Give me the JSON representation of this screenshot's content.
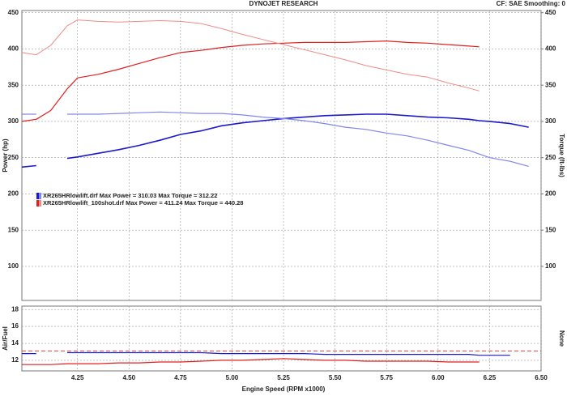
{
  "chart_data": {
    "type": "line",
    "title": "DYNOJET RESEARCH",
    "subtitle": "CF: SAE  Smoothing: 0",
    "x_label": "Engine Speed (RPM x1000)",
    "y_label": "Power (hp)",
    "y2_label": "Torque (ft-lbs)",
    "afr_label": "Air/Fuel",
    "afr_right_label": "None",
    "xlim": [
      3.98,
      6.5
    ],
    "xticks": [
      4.25,
      {
        "value": 4.5,
        "label": "4.50"
      },
      4.75,
      {
        "value": 5,
        "label": "5.00"
      },
      5.25,
      {
        "value": 5.5,
        "label": "5.50"
      },
      5.75,
      {
        "value": 6,
        "label": "6.00"
      },
      6.25,
      {
        "value": 6.5,
        "label": "6.50"
      }
    ],
    "ylim": [
      53,
      453
    ],
    "yticks": [
      100,
      150,
      200,
      250,
      300,
      350,
      400,
      450
    ],
    "y2lim": [
      53,
      453
    ],
    "y2ticks": [
      100,
      150,
      200,
      250,
      300,
      350,
      400,
      450
    ],
    "afr_ylim": [
      10.75,
      18.4
    ],
    "afr_yticks": [
      12,
      14,
      16,
      18
    ],
    "afr_reference": 13.1,
    "grid": true,
    "x": [
      3.98,
      4.05,
      4.12,
      4.2,
      4.25,
      4.35,
      4.45,
      4.55,
      4.65,
      4.75,
      4.85,
      4.95,
      5.05,
      5.15,
      5.25,
      5.35,
      5.45,
      5.55,
      5.65,
      5.75,
      5.85,
      5.95,
      6.05,
      6.15,
      6.2,
      6.25,
      6.35,
      6.44
    ],
    "legend": [
      {
        "label": "XR265HRlowlift.drf Max Power = 310.03 Max Torque = 312.22",
        "colors": [
          "#1a1acc",
          "#7f86ee"
        ]
      },
      {
        "label": "XR265HRlowlift_100shot.drf Max Power = 411.24 Max Torque = 440.28",
        "colors": [
          "#e02020",
          "#f08a8a"
        ]
      }
    ],
    "series": [
      {
        "legend_entry": 0,
        "color": "#1a1acc",
        "width": 1.6,
        "axis": "y",
        "values": [
          237,
          239,
          null,
          249,
          251,
          256,
          261,
          267,
          274,
          282,
          287,
          294,
          298,
          301,
          304,
          306,
          308,
          309,
          310,
          310,
          308,
          306,
          305,
          303,
          301,
          300,
          297,
          292
        ]
      },
      {
        "legend_entry": 0,
        "color": "#7f86ee",
        "width": 1.2,
        "axis": "y2",
        "values": [
          310,
          310,
          null,
          310,
          310,
          310,
          311,
          312,
          313,
          312,
          311,
          311,
          309,
          306,
          304,
          301,
          297,
          292,
          289,
          284,
          280,
          274,
          267,
          260,
          255,
          250,
          245,
          238
        ]
      },
      {
        "legend_entry": 1,
        "color": "#e02020",
        "width": 1.2,
        "axis": "y",
        "values": [
          300,
          303,
          315,
          345,
          360,
          365,
          372,
          380,
          388,
          395,
          398,
          402,
          405,
          407,
          408,
          409,
          409,
          409,
          410,
          411,
          409,
          408,
          406,
          404,
          403,
          null,
          null,
          null
        ]
      },
      {
        "legend_entry": 1,
        "color": "#f08a8a",
        "width": 1,
        "axis": "y2",
        "values": [
          395,
          392,
          405,
          432,
          440,
          438,
          437,
          438,
          439,
          438,
          435,
          428,
          420,
          413,
          406,
          399,
          392,
          385,
          377,
          371,
          365,
          361,
          353,
          346,
          342,
          null,
          null,
          null
        ]
      }
    ],
    "afr_series": [
      {
        "legend_entry": 0,
        "color": "#1a1acc",
        "values": [
          12.8,
          12.8,
          null,
          12.9,
          12.9,
          12.9,
          12.9,
          12.9,
          12.9,
          12.9,
          12.9,
          12.8,
          12.8,
          12.8,
          12.8,
          12.8,
          12.7,
          12.7,
          12.7,
          12.7,
          12.7,
          12.7,
          12.7,
          12.7,
          12.6,
          12.6,
          12.6,
          null
        ]
      },
      {
        "legend_entry": 1,
        "color": "#e02020",
        "values": [
          11.5,
          11.5,
          11.5,
          11.6,
          11.6,
          11.6,
          11.7,
          11.7,
          11.8,
          11.8,
          11.9,
          12.0,
          12.0,
          12.1,
          12.2,
          12.1,
          12.0,
          12.0,
          11.9,
          11.9,
          11.9,
          11.9,
          11.8,
          11.8,
          11.8,
          null,
          null,
          null
        ]
      }
    ]
  }
}
